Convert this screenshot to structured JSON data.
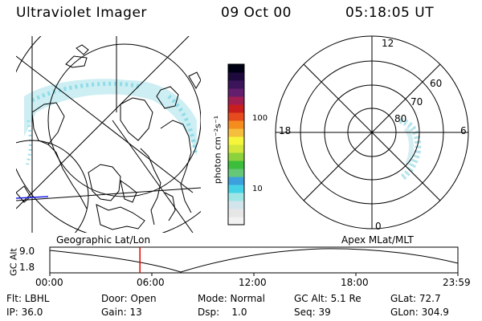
{
  "header": {
    "title": "Ultraviolet Imager",
    "date": "09 Oct 00",
    "time": "05:18:05 UT"
  },
  "colorbar": {
    "unit": "photon cm⁻²s⁻¹",
    "ticks": [
      "100",
      "10"
    ],
    "colors": [
      "#f2f2f2",
      "#e6e6e6",
      "#d2e4ec",
      "#9ee6e6",
      "#46d2e6",
      "#3ca0dc",
      "#64c878",
      "#3cbe3c",
      "#8cd23c",
      "#d2e63c",
      "#f5f53c",
      "#f5be3c",
      "#f58c1e",
      "#e64b1e",
      "#c81e1e",
      "#a01e50",
      "#641e6e",
      "#3c145a",
      "#1e0a3c",
      "#000014"
    ]
  },
  "polar": {
    "mlt_labels": {
      "top": "12",
      "left": "18",
      "right": "6",
      "bottom": "0"
    },
    "lat_labels": [
      "60",
      "70",
      "80"
    ]
  },
  "panels": {
    "left_label": "Geographic Lat/Lon",
    "right_label": "Apex MLat/MLT"
  },
  "altitude_plot": {
    "ylabel": "GC Alt",
    "yticks": [
      "9.0",
      "1.8"
    ],
    "xticks": [
      "00:00",
      "06:00",
      "12:00",
      "18:00",
      "23:59"
    ],
    "current_time_hours": 5.3,
    "marker_color": "#e60000"
  },
  "info": {
    "row1": {
      "filter": "Flt: LBHL",
      "door": "Door: Open",
      "mode": "Mode: Normal",
      "gc_alt": "GC Alt: 5.1 Re",
      "glat": "GLat:  72.7"
    },
    "row2": {
      "ip": "IP: 36.0",
      "gain": "Gain: 13",
      "dsp": "Dsp:    1.0",
      "seq": "Seq: 39",
      "glon": "GLon: 304.9"
    }
  }
}
